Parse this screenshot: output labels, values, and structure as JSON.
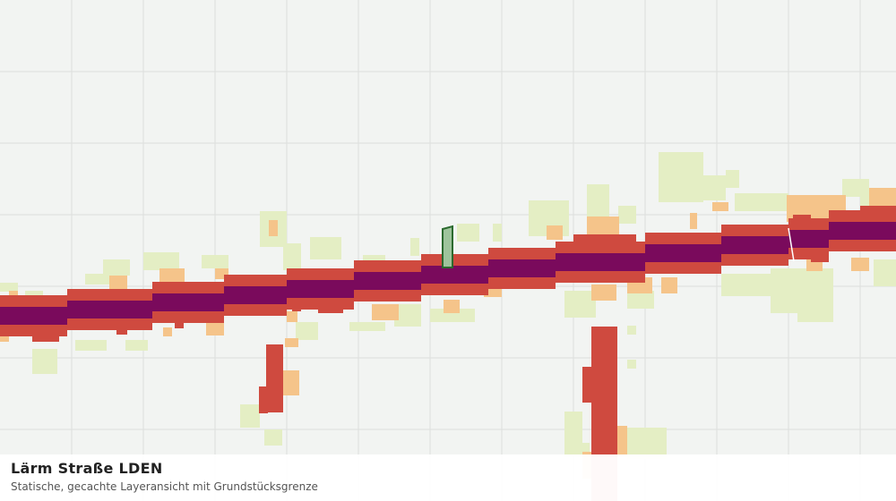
{
  "legend": {
    "title": "Lärm Straße LDEN",
    "subtitle": "Statische, gecachte Layeransicht mit Grundstücksgrenze"
  }
}
